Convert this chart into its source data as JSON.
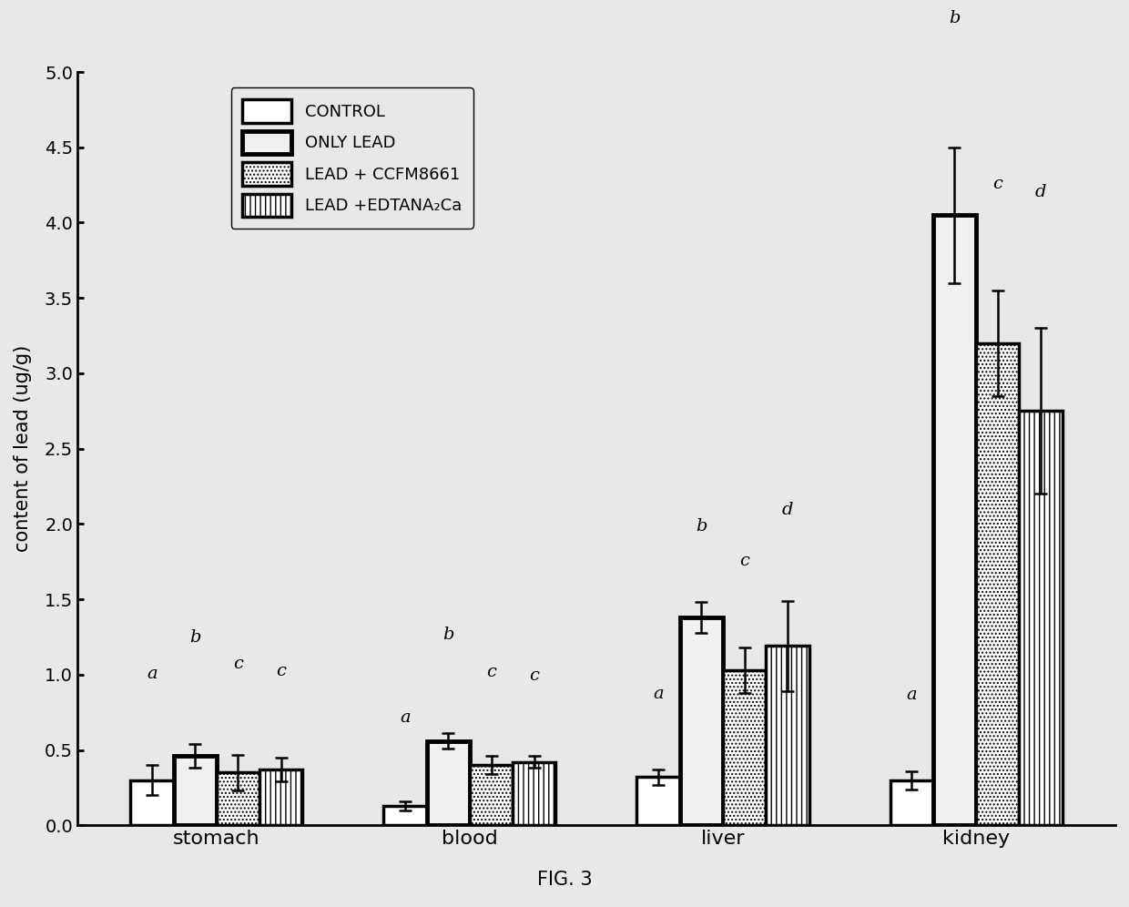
{
  "categories": [
    "stomach",
    "blood",
    "liver",
    "kidney"
  ],
  "values": {
    "CONTROL": [
      0.3,
      0.13,
      0.32,
      0.3
    ],
    "ONLY LEAD": [
      0.46,
      0.56,
      1.38,
      4.05
    ],
    "LEAD + CCFM8661": [
      0.35,
      0.4,
      1.03,
      3.2
    ],
    "LEAD + EDTANA2Ca": [
      0.37,
      0.42,
      1.19,
      2.75
    ]
  },
  "errors": {
    "CONTROL": [
      0.1,
      0.03,
      0.05,
      0.06
    ],
    "ONLY LEAD": [
      0.08,
      0.05,
      0.1,
      0.45
    ],
    "LEAD + CCFM8661": [
      0.12,
      0.06,
      0.15,
      0.35
    ],
    "LEAD + EDTANA2Ca": [
      0.08,
      0.04,
      0.3,
      0.55
    ]
  },
  "significance_labels": {
    "stomach": [
      "a",
      "b",
      "c",
      "c"
    ],
    "blood": [
      "a",
      "b",
      "c",
      "c"
    ],
    "liver": [
      "a",
      "b",
      "c",
      "d"
    ],
    "kidney": [
      "a",
      "b",
      "c",
      "d"
    ]
  },
  "sig_offsets": {
    "stomach": [
      0.55,
      0.65,
      0.55,
      0.52
    ],
    "blood": [
      0.5,
      0.6,
      0.5,
      0.48
    ],
    "liver": [
      0.45,
      0.45,
      0.52,
      0.55
    ],
    "kidney": [
      0.45,
      0.8,
      0.65,
      0.85
    ]
  },
  "bar_colors": [
    "white",
    "white",
    "white",
    "white"
  ],
  "bar_hatches": [
    "",
    "",
    "....",
    "|||"
  ],
  "bar_linewidths": [
    2.5,
    2.5,
    2.5,
    2.5
  ],
  "ylabel": "content of lead (ug/g)",
  "ylim": [
    0.0,
    5.0
  ],
  "yticks": [
    0.0,
    0.5,
    1.0,
    1.5,
    2.0,
    2.5,
    3.0,
    3.5,
    4.0,
    4.5,
    5.0
  ],
  "fig_label": "FIG. 3",
  "legend_labels": [
    "CONTROL",
    "ONLY LEAD",
    "LEAD + CCFM8661",
    "LEAD +EDTANA₂Ca"
  ],
  "bg_color": "#e8e8e8"
}
